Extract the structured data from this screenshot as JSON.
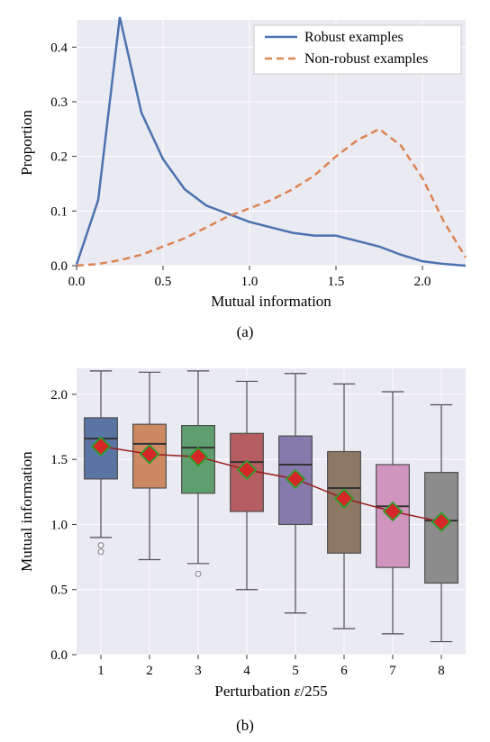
{
  "chart_a": {
    "type": "line",
    "xlabel": "Mutual information",
    "ylabel": "Proportion",
    "xlim": [
      0.0,
      2.25
    ],
    "ylim": [
      0.0,
      0.45
    ],
    "xticks": [
      0.0,
      0.5,
      1.0,
      1.5,
      2.0
    ],
    "yticks": [
      0.0,
      0.1,
      0.2,
      0.3,
      0.4
    ],
    "background_color": "#eaeaf2",
    "grid_color": "#ffffff",
    "grid_linewidth": 1,
    "label_fontsize": 17,
    "tick_fontsize": 15,
    "series": [
      {
        "name": "Robust examples",
        "color": "#4c72b0",
        "dash": "none",
        "linewidth": 2.5,
        "x": [
          0.0,
          0.125,
          0.25,
          0.375,
          0.5,
          0.625,
          0.75,
          0.875,
          1.0,
          1.125,
          1.25,
          1.375,
          1.5,
          1.625,
          1.75,
          1.875,
          2.0,
          2.125,
          2.25
        ],
        "y": [
          0.002,
          0.12,
          0.455,
          0.28,
          0.195,
          0.14,
          0.11,
          0.095,
          0.08,
          0.07,
          0.06,
          0.055,
          0.055,
          0.045,
          0.035,
          0.02,
          0.008,
          0.003,
          0.0
        ]
      },
      {
        "name": "Non-robust examples",
        "color": "#dd8452",
        "dash": "8,5",
        "linewidth": 2.5,
        "x": [
          0.0,
          0.125,
          0.25,
          0.375,
          0.5,
          0.625,
          0.75,
          0.875,
          1.0,
          1.125,
          1.25,
          1.375,
          1.5,
          1.625,
          1.75,
          1.875,
          2.0,
          2.125,
          2.25
        ],
        "y": [
          0.0,
          0.003,
          0.01,
          0.02,
          0.035,
          0.05,
          0.07,
          0.09,
          0.105,
          0.12,
          0.14,
          0.165,
          0.2,
          0.23,
          0.25,
          0.22,
          0.16,
          0.08,
          0.015
        ]
      }
    ],
    "legend": {
      "position": "upper-right",
      "frame_color": "#cccccc",
      "background": "#ffffff"
    },
    "caption": "(a)"
  },
  "chart_b": {
    "type": "boxplot",
    "xlabel": "Perturbation ε/255",
    "ylabel": "Mutual information",
    "xlim": [
      0.5,
      8.5
    ],
    "ylim": [
      0.0,
      2.2
    ],
    "xticks": [
      1,
      2,
      3,
      4,
      5,
      6,
      7,
      8
    ],
    "yticks": [
      0.0,
      0.5,
      1.0,
      1.5,
      2.0
    ],
    "background_color": "#eaeaf2",
    "grid_color": "#ffffff",
    "grid_linewidth": 1,
    "label_fontsize": 17,
    "tick_fontsize": 15,
    "box_edge_color": "#4f4f4f",
    "box_edge_width": 1.2,
    "median_color": "#333333",
    "median_width": 2,
    "whisker_color": "#4f4f4f",
    "whisker_width": 1.2,
    "box_width": 0.68,
    "outlier_marker": "circle",
    "outlier_size": 3,
    "outlier_color": "#808080",
    "mean_marker": {
      "shape": "diamond",
      "size": 10,
      "fill": "#d62728",
      "edge": "#2ca02c",
      "edge_width": 1.8,
      "line_color": "#9b1c1c",
      "line_width": 1.5
    },
    "boxes": [
      {
        "x": 1,
        "fill": "#5975a4",
        "q1": 1.35,
        "median": 1.66,
        "q3": 1.82,
        "lo": 0.9,
        "hi": 2.18,
        "outliers": [
          0.84,
          0.79
        ],
        "mean": 1.6
      },
      {
        "x": 2,
        "fill": "#cc8963",
        "q1": 1.28,
        "median": 1.62,
        "q3": 1.77,
        "lo": 0.73,
        "hi": 2.17,
        "outliers": [],
        "mean": 1.54
      },
      {
        "x": 3,
        "fill": "#5f9e6e",
        "q1": 1.24,
        "median": 1.59,
        "q3": 1.76,
        "lo": 0.7,
        "hi": 2.18,
        "outliers": [
          0.62
        ],
        "mean": 1.52
      },
      {
        "x": 4,
        "fill": "#b55d60",
        "q1": 1.1,
        "median": 1.48,
        "q3": 1.7,
        "lo": 0.5,
        "hi": 2.1,
        "outliers": [],
        "mean": 1.42
      },
      {
        "x": 5,
        "fill": "#857aab",
        "q1": 1.0,
        "median": 1.46,
        "q3": 1.68,
        "lo": 0.32,
        "hi": 2.16,
        "outliers": [],
        "mean": 1.35
      },
      {
        "x": 6,
        "fill": "#8d7866",
        "q1": 0.78,
        "median": 1.28,
        "q3": 1.56,
        "lo": 0.2,
        "hi": 2.08,
        "outliers": [],
        "mean": 1.2
      },
      {
        "x": 7,
        "fill": "#d095bf",
        "q1": 0.67,
        "median": 1.14,
        "q3": 1.46,
        "lo": 0.16,
        "hi": 2.02,
        "outliers": [],
        "mean": 1.1
      },
      {
        "x": 8,
        "fill": "#8c8c8c",
        "q1": 0.55,
        "median": 1.03,
        "q3": 1.4,
        "lo": 0.1,
        "hi": 1.92,
        "outliers": [],
        "mean": 1.02
      }
    ],
    "caption": "(b)"
  }
}
